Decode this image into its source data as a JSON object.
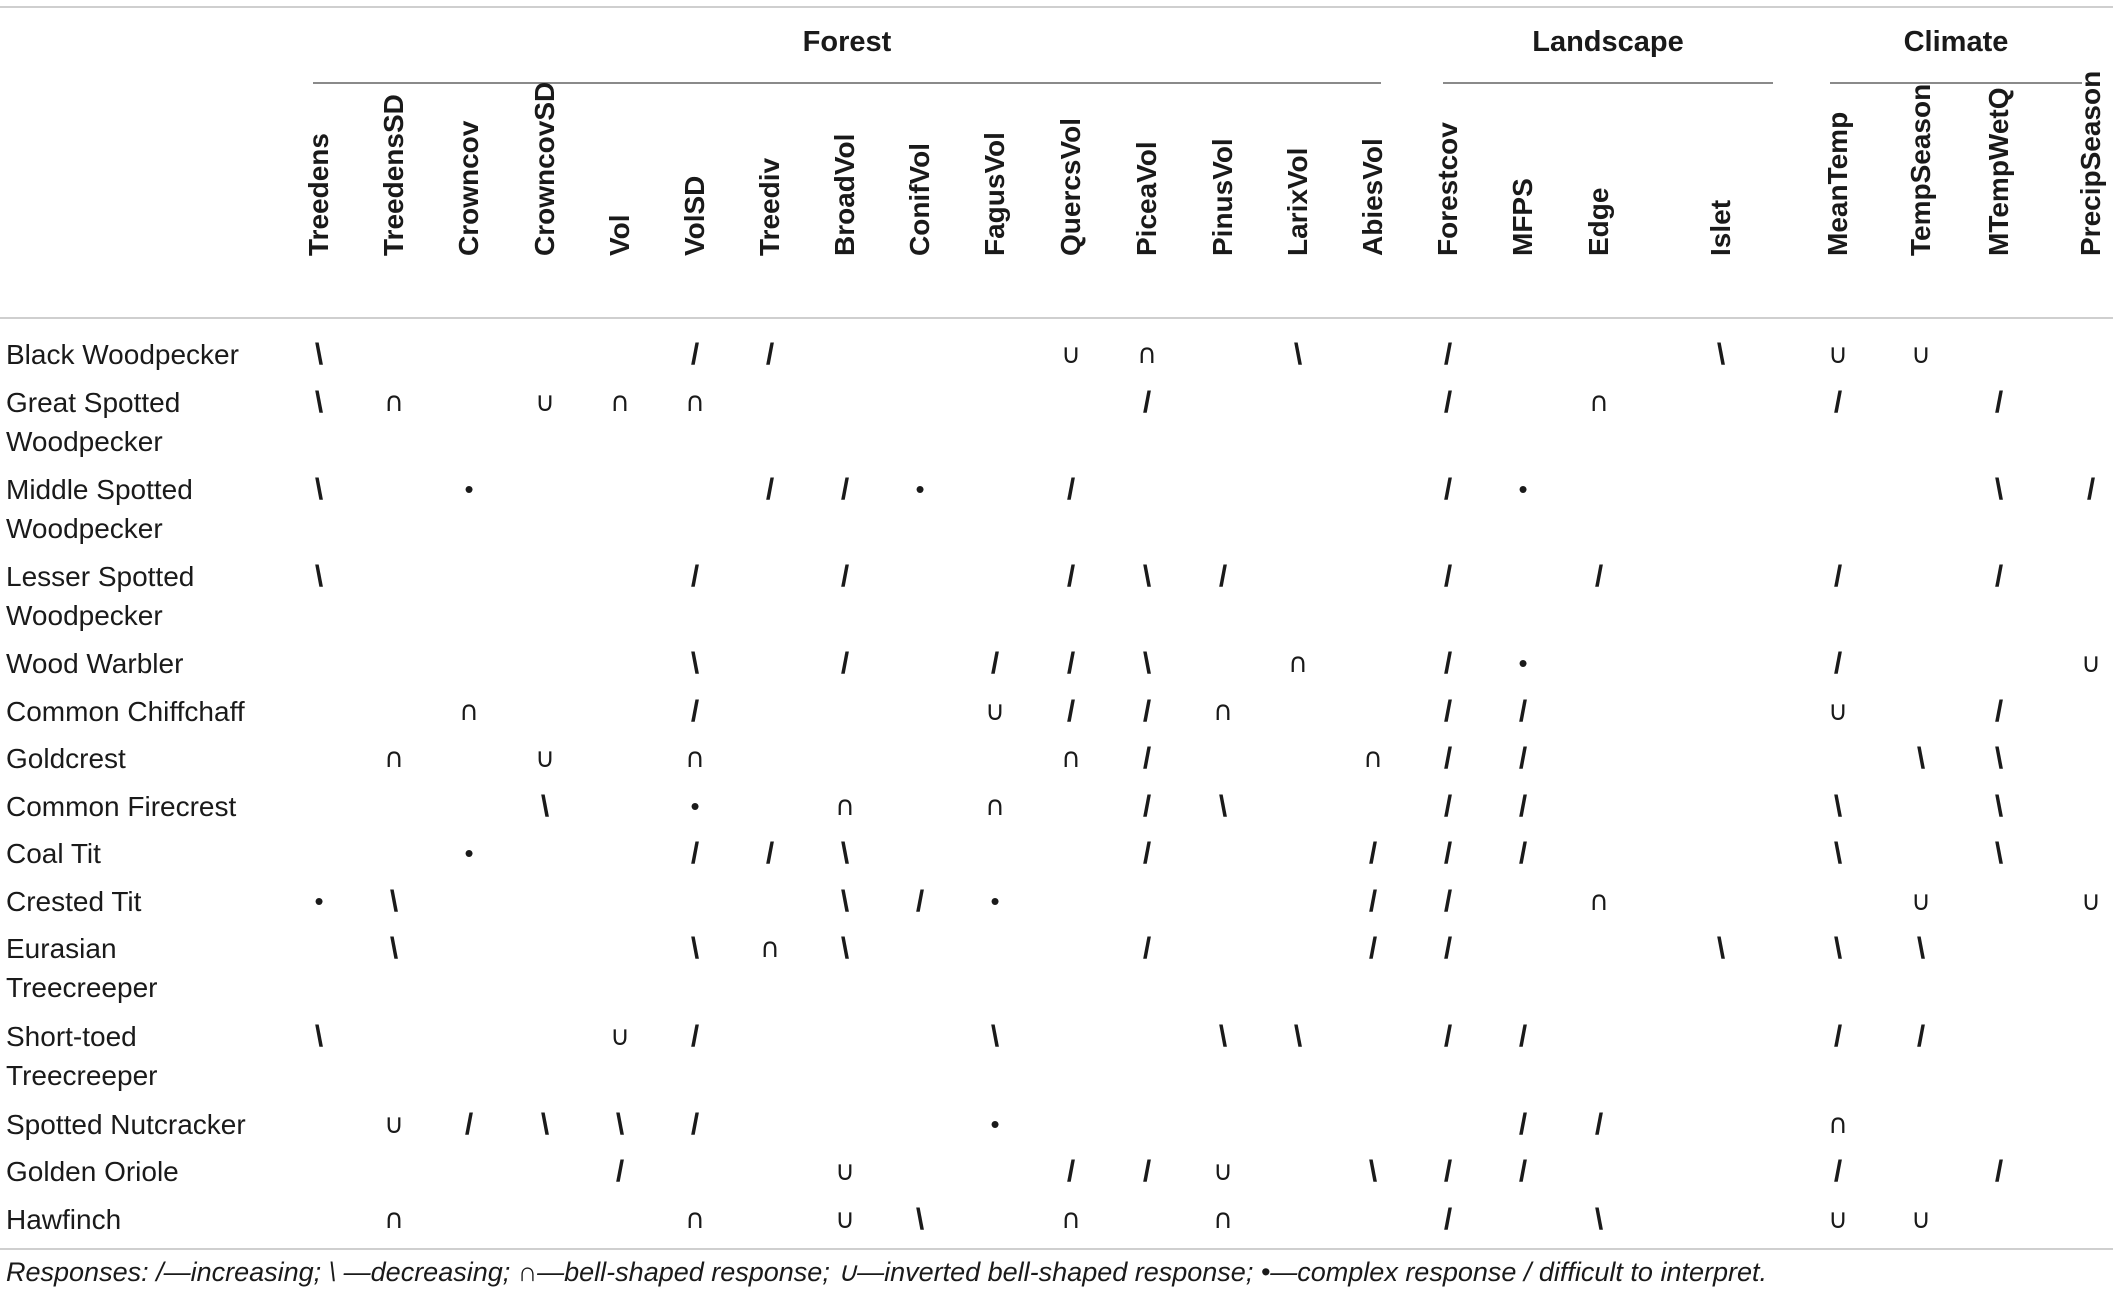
{
  "groups": [
    {
      "label": "Forest",
      "span": [
        0,
        14
      ]
    },
    {
      "label": "Landscape",
      "span": [
        15,
        18
      ]
    },
    {
      "label": "Climate",
      "span": [
        19,
        22
      ]
    }
  ],
  "columns": [
    "Treedens",
    "TreedensSD",
    "Crowncov",
    "CrowncovSD",
    "Vol",
    "VolSD",
    "Treediv",
    "BroadVol",
    "ConifVol",
    "FagusVol",
    "QuercsVol",
    "PiceaVol",
    "PinusVol",
    "LarixVol",
    "AbiesVol",
    "Forestcov",
    "MFPS",
    "Edge",
    "Islet",
    "MeanTemp",
    "TempSeason",
    "MTempWetQ",
    "PrecipSeason"
  ],
  "symbols": {
    "inc": "/",
    "dec": "\\",
    "bell": "∩",
    "inv": "∪",
    "complex": "•"
  },
  "rows": [
    {
      "name": [
        "Black Woodpecker"
      ],
      "cells": {
        "0": "dec",
        "5": "inc",
        "6": "inc",
        "10": "inv",
        "11": "bell",
        "13": "dec",
        "15": "inc",
        "18": "dec",
        "19": "inv",
        "20": "inv"
      }
    },
    {
      "name": [
        "Great Spotted",
        "Woodpecker"
      ],
      "cells": {
        "0": "dec",
        "1": "bell",
        "3": "inv",
        "4": "bell",
        "5": "bell",
        "11": "inc",
        "15": "inc",
        "17": "bell",
        "19": "inc",
        "21": "inc"
      }
    },
    {
      "name": [
        "Middle Spotted",
        "Woodpecker"
      ],
      "cells": {
        "0": "dec",
        "2": "complex",
        "6": "inc",
        "7": "inc",
        "8": "complex",
        "10": "inc",
        "15": "inc",
        "16": "complex",
        "21": "dec",
        "22": "inc"
      }
    },
    {
      "name": [
        "Lesser Spotted",
        "Woodpecker"
      ],
      "cells": {
        "0": "dec",
        "5": "inc",
        "7": "inc",
        "10": "inc",
        "11": "dec",
        "12": "inc",
        "15": "inc",
        "17": "inc",
        "19": "inc",
        "21": "inc"
      }
    },
    {
      "name": [
        "Wood Warbler"
      ],
      "cells": {
        "5": "dec",
        "7": "inc",
        "9": "inc",
        "10": "inc",
        "11": "dec",
        "13": "bell",
        "15": "inc",
        "16": "complex",
        "19": "inc",
        "22": "inv"
      }
    },
    {
      "name": [
        "Common Chiffchaff"
      ],
      "cells": {
        "2": "bell",
        "5": "inc",
        "9": "inv",
        "10": "inc",
        "11": "inc",
        "12": "bell",
        "15": "inc",
        "16": "inc",
        "19": "inv",
        "21": "inc"
      }
    },
    {
      "name": [
        "Goldcrest"
      ],
      "cells": {
        "1": "bell",
        "3": "inv",
        "5": "bell",
        "10": "bell",
        "11": "inc",
        "14": "bell",
        "15": "inc",
        "16": "inc",
        "20": "dec",
        "21": "dec"
      }
    },
    {
      "name": [
        "Common Firecrest"
      ],
      "cells": {
        "3": "dec",
        "5": "complex",
        "7": "bell",
        "9": "bell",
        "11": "inc",
        "12": "dec",
        "15": "inc",
        "16": "inc",
        "19": "dec",
        "21": "dec"
      }
    },
    {
      "name": [
        "Coal Tit"
      ],
      "cells": {
        "2": "complex",
        "5": "inc",
        "6": "inc",
        "7": "dec",
        "11": "inc",
        "14": "inc",
        "15": "inc",
        "16": "inc",
        "19": "dec",
        "21": "dec"
      }
    },
    {
      "name": [
        "Crested Tit"
      ],
      "cells": {
        "0": "complex",
        "1": "dec",
        "7": "dec",
        "8": "inc",
        "9": "complex",
        "14": "inc",
        "15": "inc",
        "17": "bell",
        "20": "inv",
        "22": "inv"
      }
    },
    {
      "name": [
        "Eurasian",
        "Treecreeper"
      ],
      "cells": {
        "1": "dec",
        "5": "dec",
        "6": "bell",
        "7": "dec",
        "11": "inc",
        "14": "inc",
        "15": "inc",
        "18": "dec",
        "19": "dec",
        "20": "dec"
      }
    },
    {
      "name": [
        "Short-toed",
        "Treecreeper"
      ],
      "cells": {
        "0": "dec",
        "4": "inv",
        "5": "inc",
        "9": "dec",
        "12": "dec",
        "13": "dec",
        "15": "inc",
        "16": "inc",
        "19": "inc",
        "20": "inc"
      }
    },
    {
      "name": [
        "Spotted Nutcracker"
      ],
      "cells": {
        "1": "inv",
        "2": "inc",
        "3": "dec",
        "4": "dec",
        "5": "inc",
        "9": "complex",
        "16": "inc",
        "17": "inc",
        "19": "bell"
      }
    },
    {
      "name": [
        "Golden Oriole"
      ],
      "cells": {
        "4": "inc",
        "7": "inv",
        "10": "inc",
        "11": "inc",
        "12": "inv",
        "14": "dec",
        "15": "inc",
        "16": "inc",
        "19": "inc",
        "21": "inc"
      }
    },
    {
      "name": [
        "Hawfinch"
      ],
      "cells": {
        "1": "bell",
        "5": "bell",
        "7": "inv",
        "8": "dec",
        "10": "bell",
        "12": "bell",
        "15": "inc",
        "17": "dec",
        "19": "inv",
        "20": "inv"
      }
    }
  ],
  "footnote": "Responses: /—increasing; \\ —decreasing; ∩—bell-shaped response; ∪—inverted bell-shaped response; •—complex response / difficult to interpret."
}
